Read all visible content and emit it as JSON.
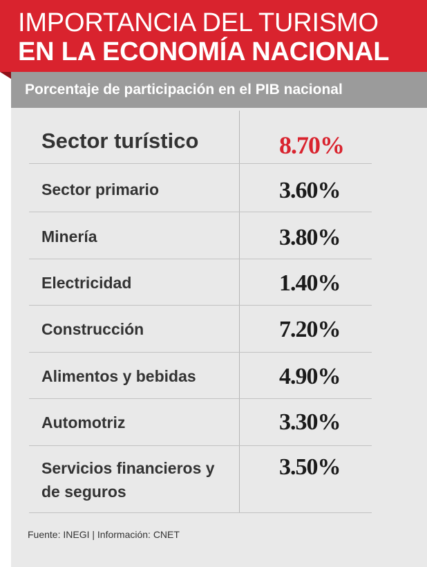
{
  "header": {
    "title_line1": "IMPORTANCIA DEL TURISMO",
    "title_line2": "EN LA ECONOMÍA NACIONAL",
    "subtitle": "Porcentaje de participación en el PIB nacional"
  },
  "chart_data": {
    "type": "table",
    "title": "IMPORTANCIA DEL TURISMO EN LA ECONOMÍA NACIONAL",
    "subtitle": "Porcentaje de participación en el PIB nacional",
    "columns": [
      "",
      ""
    ],
    "rows": [
      {
        "label": "Sector turístico",
        "value": 8.7,
        "display": "8.70%"
      },
      {
        "label": "Sector primario",
        "value": 3.6,
        "display": "3.60%"
      },
      {
        "label": "Minería",
        "value": 3.8,
        "display": "3.80%"
      },
      {
        "label": "Electricidad",
        "value": 1.4,
        "display": "1.40%"
      },
      {
        "label": "Construcción",
        "value": 7.2,
        "display": "7.20%"
      },
      {
        "label": "Alimentos y bebidas",
        "value": 4.9,
        "display": "4.90%"
      },
      {
        "label": "Automotriz",
        "value": 3.3,
        "display": "3.30%"
      },
      {
        "label": "Servicios financieros y de seguros",
        "value": 3.5,
        "display": "3.50%"
      }
    ],
    "highlight_row": "Sector turístico",
    "colors": {
      "accent": "#d9232e",
      "subheader": "#9b9b9b",
      "panel": "#e9e9e9"
    }
  },
  "footer": {
    "source": "Fuente: INEGI | Información: CNET"
  }
}
